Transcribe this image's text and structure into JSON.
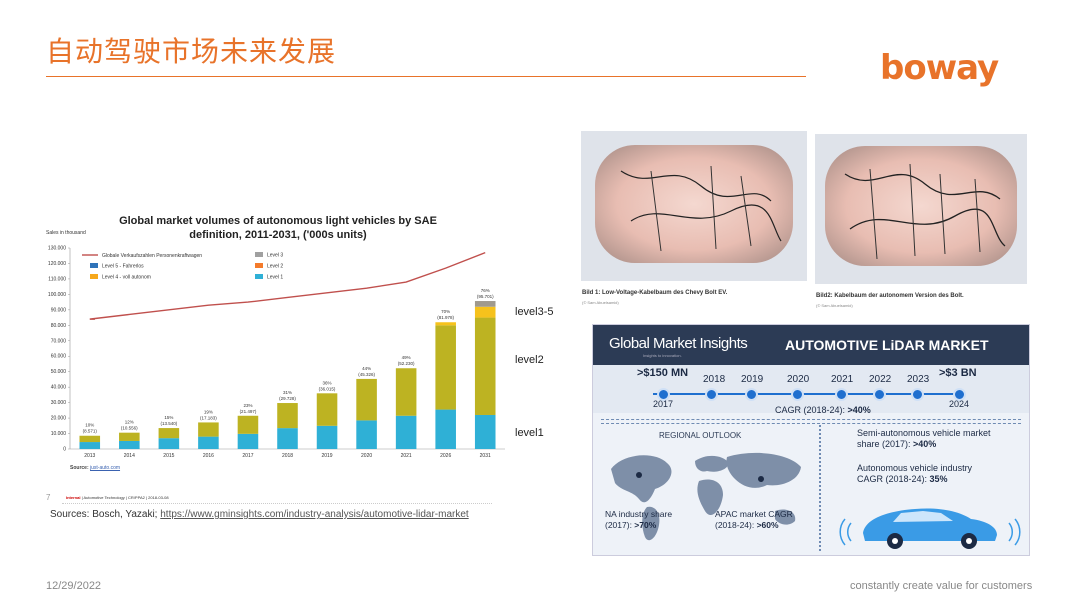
{
  "header": {
    "title": "自动驾驶市场未来发展",
    "logo": "boway"
  },
  "chart": {
    "title_line1": "Global market volumes of autonomous light vehicles by SAE",
    "title_line2": "definition, 2011-2031, ('000s units)",
    "sales_label": "Sales in thousand",
    "source_prefix": "Source:",
    "source_link": "just-auto.com",
    "page_num": "7",
    "internal": "Internal",
    "internal_rest": " | Automotive Technology | CR/PPA2 | 2018-03-08"
  },
  "chart_data": {
    "type": "bar",
    "title": "Global market volumes of autonomous light vehicles by SAE definition, 2011-2031, ('000s units)",
    "ylabel": "Sales in thousand",
    "ylim": [
      0,
      130000
    ],
    "yticks": [
      "0",
      "10.000",
      "20.000",
      "30.000",
      "40.000",
      "50.000",
      "60.000",
      "70.000",
      "80.000",
      "90.000",
      "100.000",
      "110.000",
      "120.000",
      "130.000"
    ],
    "categories": [
      "2013",
      "2014",
      "2015",
      "2016",
      "2017",
      "2018",
      "2019",
      "2020",
      "2021",
      "2026",
      "2031"
    ],
    "series": [
      {
        "name": "Level 1",
        "color": "#2fb0d6",
        "values": [
          4500,
          5200,
          7000,
          8000,
          9800,
          13500,
          15000,
          18500,
          21500,
          25500,
          22000
        ]
      },
      {
        "name": "Level 2",
        "color": "#bdb322",
        "values": [
          4071,
          5356,
          6540,
          9183,
          11697,
          16228,
          21015,
          26826,
          30730,
          54478,
          63000
        ]
      },
      {
        "name": "Level 4 - voll autonom",
        "color": "#f6c21c",
        "values": [
          0,
          0,
          0,
          0,
          0,
          0,
          0,
          0,
          0,
          2000,
          7000
        ]
      },
      {
        "name": "Level 5 - Fahrerlos",
        "color": "#f47b2b",
        "values": [
          0,
          0,
          0,
          0,
          0,
          0,
          0,
          0,
          0,
          0,
          0
        ]
      },
      {
        "name": "Level 3",
        "color": "#a09a8e",
        "values": [
          0,
          0,
          0,
          0,
          0,
          0,
          0,
          0,
          0,
          0,
          3701
        ]
      }
    ],
    "line": {
      "name": "Globale Verkaufszahlen Personenkraftwagen",
      "color": "#c0504d",
      "values": [
        84000,
        87000,
        90000,
        93000,
        95000,
        98000,
        101000,
        104000,
        108000,
        117000,
        127000
      ]
    },
    "legend_entries": [
      "Globale Verkaufszahlen Personenkraftwagen",
      "Level 5 - Fahrerlos",
      "Level 4 - voll autonom",
      "Level 3",
      "Level 2",
      "Level 1"
    ],
    "data_labels": [
      {
        "pct": "10%",
        "val": "(8.571)"
      },
      {
        "pct": "12%",
        "val": "(10.556)"
      },
      {
        "pct": "15%",
        "val": "(13.540)"
      },
      {
        "pct": "19%",
        "val": "(17.183)"
      },
      {
        "pct": "23%",
        "val": "(21.497)"
      },
      {
        "pct": "31%",
        "val": "(29.728)"
      },
      {
        "pct": "36%",
        "val": "(36.015)"
      },
      {
        "pct": "44%",
        "val": "(45.326)"
      },
      {
        "pct": "49%",
        "val": "(52.230)"
      },
      {
        "pct": "70%",
        "val": "(81.978)"
      },
      {
        "pct": "76%",
        "val": "(95.701)"
      }
    ],
    "legend": "top-left",
    "grid": false
  },
  "annotations": {
    "level35": "level3-5",
    "level2": "level2",
    "level1": "level1"
  },
  "sources": {
    "prefix": "Sources: Bosch, Yazaki; ",
    "link": "https://www.gminsights.com/industry-analysis/automotive-lidar-market"
  },
  "photos": {
    "caption1": "Bild 1: Low-Voltage-Kabelbaum des Chevy Bolt EV.",
    "credit1": "(© Sam Abuelsamid)",
    "caption2": "Bild2: Kabelbaum der autonomem Version des Bolt.",
    "credit2": "(© Sam Abuelsamid)"
  },
  "lidar": {
    "brand": "Global Market Insights",
    "brand_sub": "Insights to innovation.",
    "title": "AUTOMOTIVE LiDAR MARKET",
    "start_value": ">$150 MN",
    "end_value": ">$3 BN",
    "years": [
      "2018",
      "2019",
      "2020",
      "2021",
      "2022",
      "2023"
    ],
    "start_year": "2017",
    "end_year": "2024",
    "cagr_label": "CAGR (2018-24): ",
    "cagr_value": ">40%",
    "regional": "REGIONAL OUTLOOK",
    "na_label": "NA industry share",
    "na_value_prefix": "(2017): ",
    "na_value": ">70%",
    "apac_label": "APAC market CAGR",
    "apac_value_prefix": "(2018-24): ",
    "apac_value": ">60%",
    "semi_label": "Semi-autonomous vehicle market",
    "semi_label2": "share (2017): ",
    "semi_value": ">40%",
    "auto_label": "Autonomous vehicle industry",
    "auto_label2": "CAGR (2018-24): ",
    "auto_value": "35%"
  },
  "footer": {
    "date": "12/29/2022",
    "tagline": "constantly create value for customers"
  }
}
